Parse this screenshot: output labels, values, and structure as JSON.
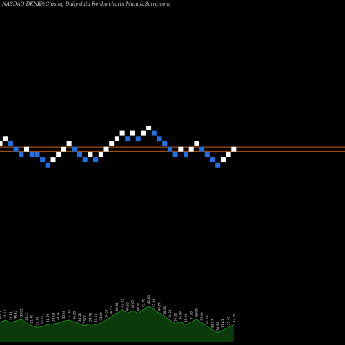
{
  "header": {
    "symbol": "NASDAQ DKNG",
    "pct": "5%",
    "subtitle": "Closing Daily data  Renko  charts MunafaSutra.com"
  },
  "chart_data": {
    "type": "renko",
    "title": "NASDAQ DKNG 5%-  Closing Daily data  Renko  charts MunafaSutra.com",
    "brick_count": 45,
    "levels": [
      0,
      1,
      0,
      -1,
      -2,
      -1,
      -2,
      -2,
      -3,
      -4,
      -3,
      -2,
      -1,
      0,
      -1,
      -2,
      -3,
      -2,
      -3,
      -2,
      -1,
      0,
      1,
      2,
      1,
      2,
      1,
      2,
      3,
      2,
      1,
      0,
      -1,
      -2,
      -1,
      -2,
      -1,
      0,
      -1,
      -2,
      -3,
      -4,
      -3,
      -2,
      -1
    ],
    "directions": [
      "up",
      "up",
      "down",
      "down",
      "down",
      "up",
      "down",
      "down",
      "down",
      "down",
      "up",
      "up",
      "up",
      "up",
      "down",
      "down",
      "down",
      "up",
      "down",
      "up",
      "up",
      "up",
      "up",
      "up",
      "down",
      "up",
      "down",
      "up",
      "up",
      "down",
      "down",
      "down",
      "down",
      "down",
      "up",
      "down",
      "up",
      "up",
      "down",
      "down",
      "down",
      "down",
      "up",
      "up",
      "up"
    ],
    "reference_lines": [
      {
        "name": "line-1",
        "level": -0.6
      },
      {
        "name": "line-2",
        "level": -1.4
      }
    ],
    "up_color": "#ffffff",
    "down_color": "#1f6fe6",
    "line_color": "#c8651b",
    "volume_fill_color": "#0b3a0b",
    "volume_stroke_color": "#19a519",
    "volume": [
      {
        "label": "36.78",
        "value": 0.46
      },
      {
        "label": "38.15",
        "value": 0.5
      },
      {
        "label": "36.48",
        "value": 0.45
      },
      {
        "label": "35.62",
        "value": 0.48
      },
      {
        "label": "33.82",
        "value": 0.52
      },
      {
        "label": "32.25",
        "value": 0.44
      },
      {
        "label": "31.49",
        "value": 0.38
      },
      {
        "label": "29.88",
        "value": 0.34
      },
      {
        "label": "30.16",
        "value": 0.36
      },
      {
        "label": "31.89",
        "value": 0.4
      },
      {
        "label": "33.09",
        "value": 0.42
      },
      {
        "label": "34.46",
        "value": 0.44
      },
      {
        "label": "35.89",
        "value": 0.48
      },
      {
        "label": "37.41",
        "value": 0.5
      },
      {
        "label": "36.09",
        "value": 0.46
      },
      {
        "label": "34.50",
        "value": 0.42
      },
      {
        "label": "33.00",
        "value": 0.38
      },
      {
        "label": "34.70",
        "value": 0.42
      },
      {
        "label": "33.05",
        "value": 0.4
      },
      {
        "label": "34.80",
        "value": 0.44
      },
      {
        "label": "36.60",
        "value": 0.5
      },
      {
        "label": "38.52",
        "value": 0.58
      },
      {
        "label": "40.41",
        "value": 0.66
      },
      {
        "label": "42.53",
        "value": 0.74
      },
      {
        "label": "40.50",
        "value": 0.66
      },
      {
        "label": "42.67",
        "value": 0.72
      },
      {
        "label": "40.61",
        "value": 0.66
      },
      {
        "label": "42.79",
        "value": 0.74
      },
      {
        "label": "45.05",
        "value": 0.82
      },
      {
        "label": "42.84",
        "value": 0.74
      },
      {
        "label": "40.77",
        "value": 0.66
      },
      {
        "label": "38.80",
        "value": 0.58
      },
      {
        "label": "36.91",
        "value": 0.5
      },
      {
        "label": "35.12",
        "value": 0.42
      },
      {
        "label": "36.97",
        "value": 0.46
      },
      {
        "label": "35.20",
        "value": 0.4
      },
      {
        "label": "37.05",
        "value": 0.46
      },
      {
        "label": "38.99",
        "value": 0.52
      },
      {
        "label": "37.09",
        "value": 0.44
      },
      {
        "label": "35.28",
        "value": 0.36
      },
      {
        "label": "33.57",
        "value": 0.28
      },
      {
        "label": "31.95",
        "value": 0.22
      },
      {
        "label": "33.63",
        "value": 0.28
      },
      {
        "label": "35.40",
        "value": 0.34
      },
      {
        "label": "37.26",
        "value": 0.4
      }
    ]
  }
}
